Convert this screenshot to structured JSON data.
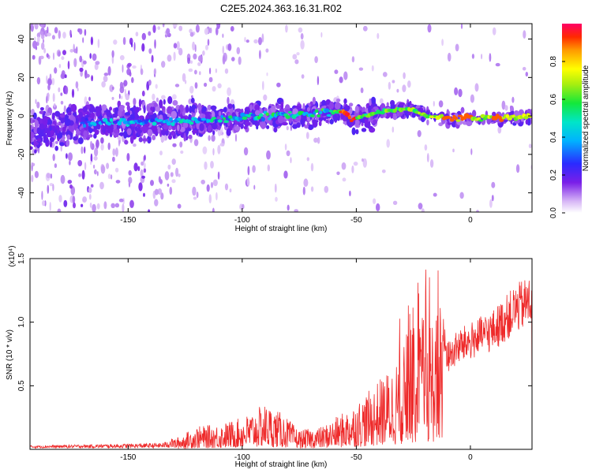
{
  "title": "C2E5.2024.363.16.31.R02",
  "chart_data": [
    {
      "type": "heatmap",
      "xlabel": "Height of straight line (km)",
      "ylabel": "Frequency (Hz)",
      "xlim": [
        -193,
        27
      ],
      "ylim": [
        -50,
        48
      ],
      "x_ticks": [
        -150,
        -100,
        -50,
        0
      ],
      "x_tick_labels": [
        "-150",
        "-100",
        "-50",
        "0"
      ],
      "y_ticks": [
        -40,
        -20,
        0,
        20,
        40
      ],
      "y_tick_labels": [
        "-40",
        "-20",
        "0",
        "20",
        "40"
      ],
      "colorbar": {
        "label": "Normalized spectral amplitude",
        "range": [
          0,
          1
        ],
        "ticks": [
          0.0,
          0.2,
          0.4,
          0.6,
          0.8
        ],
        "tick_labels": [
          "0.0",
          "0.2",
          "0.4",
          "0.6",
          "0.8"
        ],
        "colormap": "rainbow"
      },
      "ridge": [
        {
          "x": -190,
          "y": -8
        },
        {
          "x": -170,
          "y": -4
        },
        {
          "x": -150,
          "y": -3
        },
        {
          "x": -130,
          "y": -3
        },
        {
          "x": -110,
          "y": -2
        },
        {
          "x": -90,
          "y": 0
        },
        {
          "x": -70,
          "y": 1
        },
        {
          "x": -55,
          "y": 2
        },
        {
          "x": -52,
          "y": -2
        },
        {
          "x": -40,
          "y": 2
        },
        {
          "x": -25,
          "y": 4
        },
        {
          "x": -20,
          "y": 0
        },
        {
          "x": -10,
          "y": -1
        },
        {
          "x": 0,
          "y": -1
        },
        {
          "x": 15,
          "y": -1
        },
        {
          "x": 27,
          "y": 0
        }
      ],
      "grid": false
    },
    {
      "type": "line",
      "xlabel": "Height of straight line (km)",
      "ylabel": "SNR (10 * v/v)",
      "multiplier_label": "(x10⁴)",
      "xlim": [
        -193,
        27
      ],
      "ylim": [
        0,
        1.5
      ],
      "x_ticks": [
        -150,
        -100,
        -50,
        0
      ],
      "x_tick_labels": [
        "-150",
        "-100",
        "-50",
        "0"
      ],
      "y_ticks": [
        0.5,
        1.0,
        1.5
      ],
      "y_tick_labels": [
        "0.5",
        "1.0",
        "1.5"
      ],
      "series": [
        {
          "color": "#ee2a2a",
          "envelope": [
            {
              "x": -193,
              "y": 0.02
            },
            {
              "x": -160,
              "y": 0.03
            },
            {
              "x": -135,
              "y": 0.04
            },
            {
              "x": -128,
              "y": 0.1
            },
            {
              "x": -120,
              "y": 0.18
            },
            {
              "x": -110,
              "y": 0.2
            },
            {
              "x": -100,
              "y": 0.25
            },
            {
              "x": -90,
              "y": 0.36
            },
            {
              "x": -82,
              "y": 0.28
            },
            {
              "x": -75,
              "y": 0.15
            },
            {
              "x": -65,
              "y": 0.18
            },
            {
              "x": -55,
              "y": 0.3
            },
            {
              "x": -45,
              "y": 0.45
            },
            {
              "x": -35,
              "y": 0.65
            },
            {
              "x": -28,
              "y": 0.85
            },
            {
              "x": -20,
              "y": 1.05
            },
            {
              "x": -15,
              "y": 1.1
            },
            {
              "x": -12,
              "y": 1.05
            },
            {
              "x": -10,
              "y": 0.85
            },
            {
              "x": -5,
              "y": 0.95
            },
            {
              "x": 5,
              "y": 1.05
            },
            {
              "x": 10,
              "y": 1.1
            },
            {
              "x": 20,
              "y": 1.3
            },
            {
              "x": 27,
              "y": 1.38
            }
          ]
        }
      ],
      "grid": false
    }
  ]
}
